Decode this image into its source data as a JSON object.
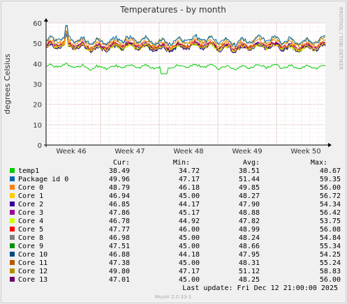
{
  "chart_data": {
    "type": "line",
    "title": "Temperatures - by month",
    "ylabel": "degrees Celsius",
    "xlabel": "",
    "watermark": "RRDTOOL / TOBI OETIKER",
    "ylim": [
      0,
      60
    ],
    "yticks": [
      0,
      10,
      20,
      30,
      40,
      50,
      60
    ],
    "xticks": [
      "Week 46",
      "Week 47",
      "Week 48",
      "Week 49",
      "Week 50"
    ],
    "grid": true,
    "legend_position": "bottom",
    "legend_headers": {
      "cur": "Cur:",
      "min": "Min:",
      "avg": "Avg:",
      "max": "Max:"
    },
    "series": [
      {
        "name": "temp1",
        "color": "#00cc00",
        "cur": "38.49",
        "min": "34.72",
        "avg": "38.51",
        "max": "40.67"
      },
      {
        "name": "Package id 0",
        "color": "#0066b3",
        "cur": "49.96",
        "min": "47.17",
        "avg": "51.44",
        "max": "59.35"
      },
      {
        "name": "Core 0",
        "color": "#ff8000",
        "cur": "48.79",
        "min": "46.18",
        "avg": "49.85",
        "max": "56.00"
      },
      {
        "name": "Core 1",
        "color": "#ffcc00",
        "cur": "46.94",
        "min": "45.00",
        "avg": "48.27",
        "max": "56.72"
      },
      {
        "name": "Core 2",
        "color": "#330099",
        "cur": "46.85",
        "min": "44.17",
        "avg": "47.90",
        "max": "54.34"
      },
      {
        "name": "Core 3",
        "color": "#990099",
        "cur": "47.86",
        "min": "45.17",
        "avg": "48.88",
        "max": "56.42"
      },
      {
        "name": "Core 4",
        "color": "#ccff00",
        "cur": "46.78",
        "min": "44.92",
        "avg": "47.82",
        "max": "53.75"
      },
      {
        "name": "Core 5",
        "color": "#ff0000",
        "cur": "47.77",
        "min": "46.00",
        "avg": "48.99",
        "max": "56.08"
      },
      {
        "name": "Core 8",
        "color": "#808080",
        "cur": "46.98",
        "min": "45.00",
        "avg": "48.24",
        "max": "54.84"
      },
      {
        "name": "Core 9",
        "color": "#008f00",
        "cur": "47.51",
        "min": "45.00",
        "avg": "48.66",
        "max": "55.34"
      },
      {
        "name": "Core 10",
        "color": "#00487d",
        "cur": "46.88",
        "min": "44.18",
        "avg": "47.95",
        "max": "54.25"
      },
      {
        "name": "Core 11",
        "color": "#b35a00",
        "cur": "47.38",
        "min": "45.00",
        "avg": "48.31",
        "max": "55.24"
      },
      {
        "name": "Core 12",
        "color": "#b38f00",
        "cur": "49.80",
        "min": "47.17",
        "avg": "51.12",
        "max": "58.83"
      },
      {
        "name": "Core 13",
        "color": "#6b006b",
        "cur": "47.01",
        "min": "45.00",
        "avg": "48.25",
        "max": "56.00"
      }
    ]
  },
  "footer": {
    "last_update": "Last update:  Fri Dec 12 21:00:00 2025",
    "version": "Munin 2.0.33-1"
  }
}
